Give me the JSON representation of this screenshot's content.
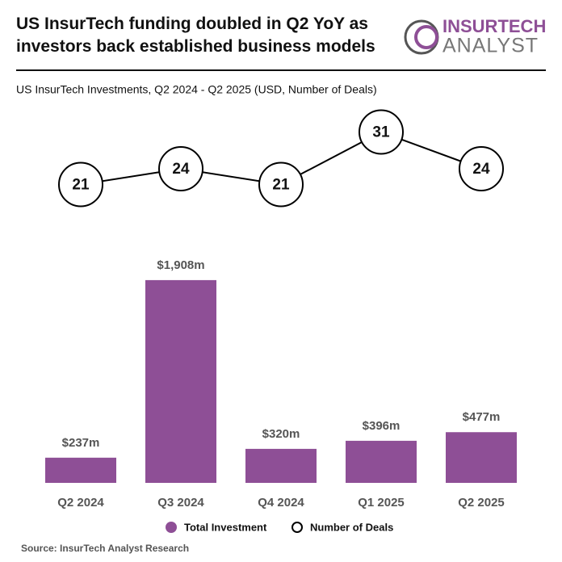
{
  "chart_data": {
    "type": "bar-line",
    "title": "US InsurTech funding doubled in Q2 YoY as investors back established business models",
    "subtitle": "US InsurTech Investments, Q2 2024 - Q2 2025 (USD, Number of Deals)",
    "logo": {
      "line1": "INSURTECH",
      "line2": "ANALYST"
    },
    "categories": [
      "Q2 2024",
      "Q3 2024",
      "Q4 2024",
      "Q1 2025",
      "Q2 2025"
    ],
    "series": [
      {
        "name": "Total Investment",
        "type": "bar",
        "color": "#8e4f96",
        "values": [
          237,
          1908,
          320,
          396,
          477
        ],
        "value_labels": [
          "$237m",
          "$1,908m",
          "$320m",
          "$396m",
          "$477m"
        ]
      },
      {
        "name": "Number of Deals",
        "type": "line",
        "color": "#000000",
        "values": [
          21,
          24,
          21,
          31,
          24
        ]
      }
    ],
    "source": "Source: InsurTech Analyst Research"
  }
}
